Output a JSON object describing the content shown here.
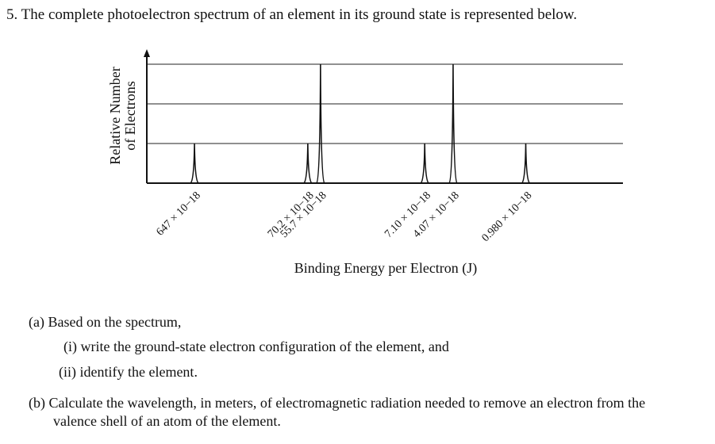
{
  "question": {
    "title": "5.  The complete photoelectron spectrum of an element in its ground state is represented below.",
    "part_a": "(a)  Based on the spectrum,",
    "part_a_i": "(i)  write the ground-state electron configuration of the element, and",
    "part_a_ii": "(ii)  identify the element.",
    "part_b_line1": "(b)  Calculate the wavelength, in meters, of electromagnetic radiation needed to remove an electron from the",
    "part_b_line2": "valence shell of an atom of the element."
  },
  "chart_data": {
    "type": "line",
    "title": "",
    "xlabel": "Binding Energy per Electron (J)",
    "ylabel_line1": "Relative Number",
    "ylabel_line2": "of Electrons",
    "ylim": [
      0,
      3
    ],
    "grid": true,
    "x_reversed": true,
    "peaks": [
      {
        "label": "647 × 10−18",
        "energy_e18": 647,
        "relative": 1
      },
      {
        "label": "70.2 × 10−18",
        "energy_e18": 70.2,
        "relative": 1
      },
      {
        "label": "55.7 × 10−18",
        "energy_e18": 55.7,
        "relative": 3
      },
      {
        "label": "7.10 × 10−18",
        "energy_e18": 7.1,
        "relative": 1
      },
      {
        "label": "4.07 × 10−18",
        "energy_e18": 4.07,
        "relative": 3
      },
      {
        "label": "0.980 × 10−18",
        "energy_e18": 0.98,
        "relative": 1
      }
    ]
  }
}
